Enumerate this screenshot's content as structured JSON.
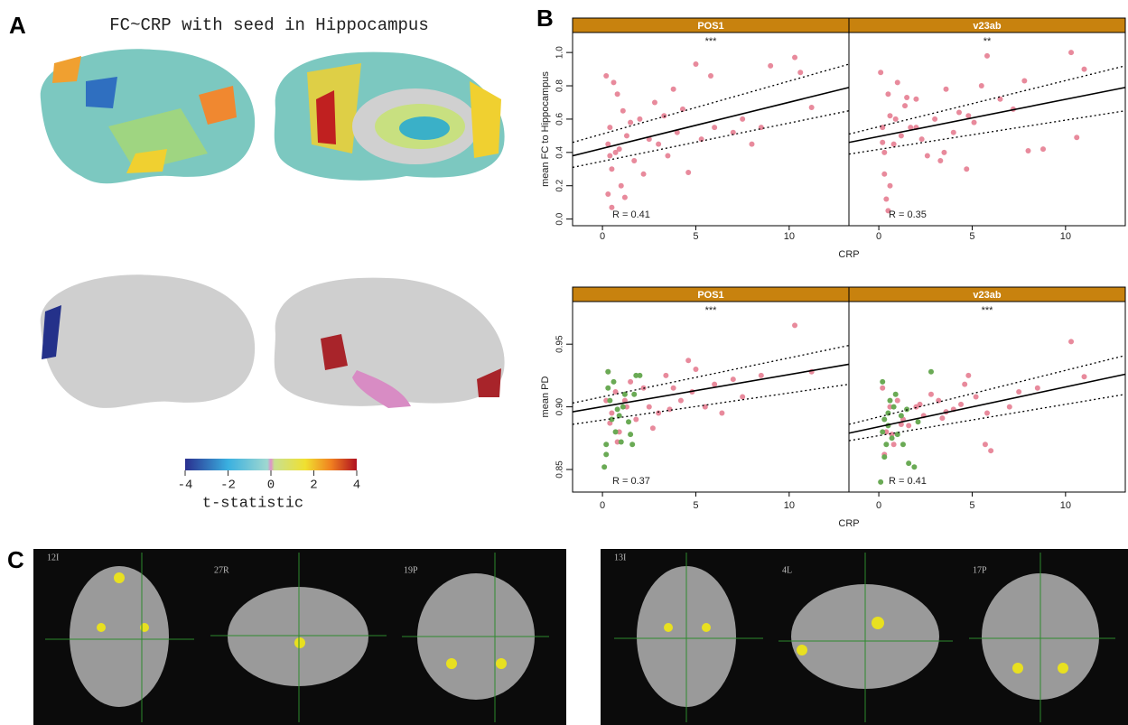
{
  "figure": {
    "panel_labels": [
      "A",
      "B",
      "C"
    ],
    "title_a": "FC~CRP with seed in Hippocampus",
    "colorbar": {
      "label": "t-statistic",
      "lim": [
        -4,
        4
      ],
      "ticks": [
        -4,
        -2,
        0,
        2,
        4
      ]
    },
    "slice_labels": [
      "12I",
      "27R",
      "19P",
      "13I",
      "4L",
      "17P"
    ]
  },
  "chart_data": [
    {
      "type": "scatter",
      "ylabel": "mean FC to Hippocampus",
      "xlabel": "CRP",
      "xlim": [
        -1.6,
        13.2
      ],
      "xticks": [
        0,
        5,
        10
      ],
      "ylim": [
        -0.04,
        1.12
      ],
      "yticks": [
        {
          "value": 0,
          "label": "0.0"
        },
        0.2,
        0.4,
        0.6,
        0.8,
        {
          "value": 1,
          "label": "1.0"
        }
      ],
      "strip_color": "#c8820e",
      "facets": [
        {
          "title": "POS1",
          "annotation": "***",
          "r_label": "R = 0.41",
          "series": [
            {
              "color": "#e88a9c",
              "x": [
                0.2,
                0.3,
                0.4,
                0.5,
                0.6,
                0.7,
                0.8,
                1.0,
                1.1,
                1.3,
                1.5,
                1.7,
                2.0,
                2.2,
                2.5,
                2.8,
                3.0,
                3.3,
                3.5,
                3.8,
                4.0,
                4.3,
                4.6,
                5.0,
                5.3,
                5.8,
                6.0,
                7.0,
                7.5,
                8.0,
                8.5,
                9.0,
                10.3,
                10.6,
                11.2,
                0.3,
                0.5,
                0.9,
                1.2,
                0.4
              ],
              "values": [
                0.86,
                0.45,
                0.55,
                0.3,
                0.82,
                0.4,
                0.75,
                0.2,
                0.65,
                0.5,
                0.58,
                0.35,
                0.6,
                0.27,
                0.48,
                0.7,
                0.45,
                0.62,
                0.38,
                0.78,
                0.52,
                0.66,
                0.28,
                0.93,
                0.48,
                0.86,
                0.55,
                0.52,
                0.6,
                0.45,
                0.55,
                0.92,
                0.97,
                0.88,
                0.67,
                0.15,
                0.07,
                0.42,
                0.13,
                0.38
              ]
            }
          ],
          "fit": {
            "x": [
              -1.6,
              13.2
            ],
            "y": [
              0.38,
              0.79
            ],
            "lower": [
              0.31,
              0.65
            ],
            "upper": [
              0.46,
              0.93
            ]
          }
        },
        {
          "title": "v23ab",
          "annotation": "**",
          "r_label": "R = 0.35",
          "series": [
            {
              "color": "#e88a9c",
              "x": [
                0.1,
                0.2,
                0.3,
                0.4,
                0.5,
                0.6,
                0.8,
                1.0,
                1.2,
                1.4,
                1.7,
                2.0,
                2.3,
                2.6,
                3.0,
                3.3,
                3.6,
                4.0,
                4.3,
                4.7,
                5.1,
                5.5,
                5.8,
                6.5,
                7.2,
                7.8,
                8.0,
                8.8,
                10.3,
                10.6,
                11.0,
                0.3,
                0.6,
                0.9,
                1.5,
                0.5,
                2.0,
                3.5,
                4.8,
                0.2
              ],
              "values": [
                0.88,
                0.55,
                0.4,
                0.12,
                0.75,
                0.62,
                0.45,
                0.82,
                0.5,
                0.68,
                0.55,
                0.72,
                0.48,
                0.38,
                0.6,
                0.35,
                0.78,
                0.52,
                0.64,
                0.3,
                0.58,
                0.8,
                0.98,
                0.72,
                0.66,
                0.83,
                0.41,
                0.42,
                1.0,
                0.49,
                0.9,
                0.27,
                0.2,
                0.6,
                0.73,
                0.05,
                0.55,
                0.4,
                0.62,
                0.46
              ]
            }
          ],
          "fit": {
            "x": [
              -1.6,
              13.2
            ],
            "y": [
              0.46,
              0.79
            ],
            "lower": [
              0.39,
              0.65
            ],
            "upper": [
              0.51,
              0.92
            ]
          }
        }
      ]
    },
    {
      "type": "scatter",
      "ylabel": "mean PD",
      "xlabel": "CRP",
      "xlim": [
        -1.6,
        13.2
      ],
      "xticks": [
        0,
        5,
        10
      ],
      "ylim": [
        0.832,
        0.984
      ],
      "yticks": [
        0.85,
        {
          "value": 0.9,
          "label": "0.90"
        },
        0.95
      ],
      "strip_color": "#c8820e",
      "facets": [
        {
          "title": "POS1",
          "annotation": "***",
          "r_label": "R = 0.37",
          "series": [
            {
              "color": "#e88a9c",
              "x": [
                0.2,
                0.3,
                0.5,
                0.7,
                0.9,
                1.2,
                1.5,
                1.8,
                2.2,
                2.5,
                3.0,
                3.4,
                3.8,
                4.2,
                4.6,
                5.0,
                5.5,
                6.0,
                7.0,
                7.5,
                8.5,
                10.3,
                11.2,
                0.4,
                0.8,
                1.3,
                2.7,
                3.6,
                4.8,
                6.4
              ],
              "values": [
                0.905,
                0.928,
                0.895,
                0.912,
                0.88,
                0.905,
                0.92,
                0.89,
                0.915,
                0.9,
                0.895,
                0.925,
                0.915,
                0.905,
                0.937,
                0.93,
                0.9,
                0.918,
                0.922,
                0.908,
                0.925,
                0.965,
                0.928,
                0.887,
                0.872,
                0.9,
                0.883,
                0.898,
                0.912,
                0.895
              ]
            },
            {
              "color": "#6aaa55",
              "x": [
                0.1,
                0.2,
                0.3,
                0.4,
                0.5,
                0.6,
                0.8,
                1.0,
                1.2,
                1.4,
                1.6,
                1.8,
                2.0,
                0.3,
                0.7,
                1.1,
                1.5,
                0.2,
                0.9,
                1.7
              ],
              "values": [
                0.852,
                0.862,
                0.928,
                0.905,
                0.89,
                0.92,
                0.898,
                0.872,
                0.91,
                0.888,
                0.87,
                0.925,
                0.925,
                0.915,
                0.88,
                0.9,
                0.878,
                0.87,
                0.893,
                0.91
              ]
            }
          ],
          "fit": {
            "x": [
              -1.6,
              13.2
            ],
            "y": [
              0.896,
              0.934
            ],
            "lower": [
              0.886,
              0.918
            ],
            "upper": [
              0.903,
              0.949
            ]
          }
        },
        {
          "title": "v23ab",
          "annotation": "***",
          "r_label": "R = 0.41",
          "series": [
            {
              "color": "#e88a9c",
              "x": [
                0.2,
                0.4,
                0.6,
                0.8,
                1.0,
                1.3,
                1.6,
                2.0,
                2.4,
                2.8,
                3.2,
                3.6,
                4.0,
                4.4,
                4.8,
                5.2,
                5.7,
                6.0,
                7.0,
                7.5,
                8.5,
                10.3,
                11.0,
                0.3,
                0.7,
                1.2,
                2.2,
                3.4,
                4.6,
                5.8
              ],
              "values": [
                0.915,
                0.88,
                0.9,
                0.87,
                0.905,
                0.89,
                0.885,
                0.9,
                0.893,
                0.91,
                0.905,
                0.896,
                0.898,
                0.902,
                0.925,
                0.908,
                0.87,
                0.865,
                0.9,
                0.912,
                0.915,
                0.952,
                0.924,
                0.862,
                0.878,
                0.886,
                0.902,
                0.891,
                0.918,
                0.895
              ]
            },
            {
              "color": "#6aaa55",
              "x": [
                0.1,
                0.2,
                0.3,
                0.4,
                0.5,
                0.6,
                0.8,
                1.0,
                1.3,
                1.6,
                1.9,
                2.1,
                2.8,
                0.2,
                0.5,
                0.9,
                1.2,
                0.3,
                1.5,
                0.7
              ],
              "values": [
                0.84,
                0.92,
                0.89,
                0.87,
                0.885,
                0.905,
                0.9,
                0.878,
                0.87,
                0.855,
                0.852,
                0.888,
                0.928,
                0.88,
                0.895,
                0.91,
                0.893,
                0.86,
                0.898,
                0.875
              ]
            }
          ],
          "fit": {
            "x": [
              -1.6,
              13.2
            ],
            "y": [
              0.879,
              0.926
            ],
            "lower": [
              0.873,
              0.91
            ],
            "upper": [
              0.886,
              0.941
            ]
          }
        }
      ]
    }
  ]
}
